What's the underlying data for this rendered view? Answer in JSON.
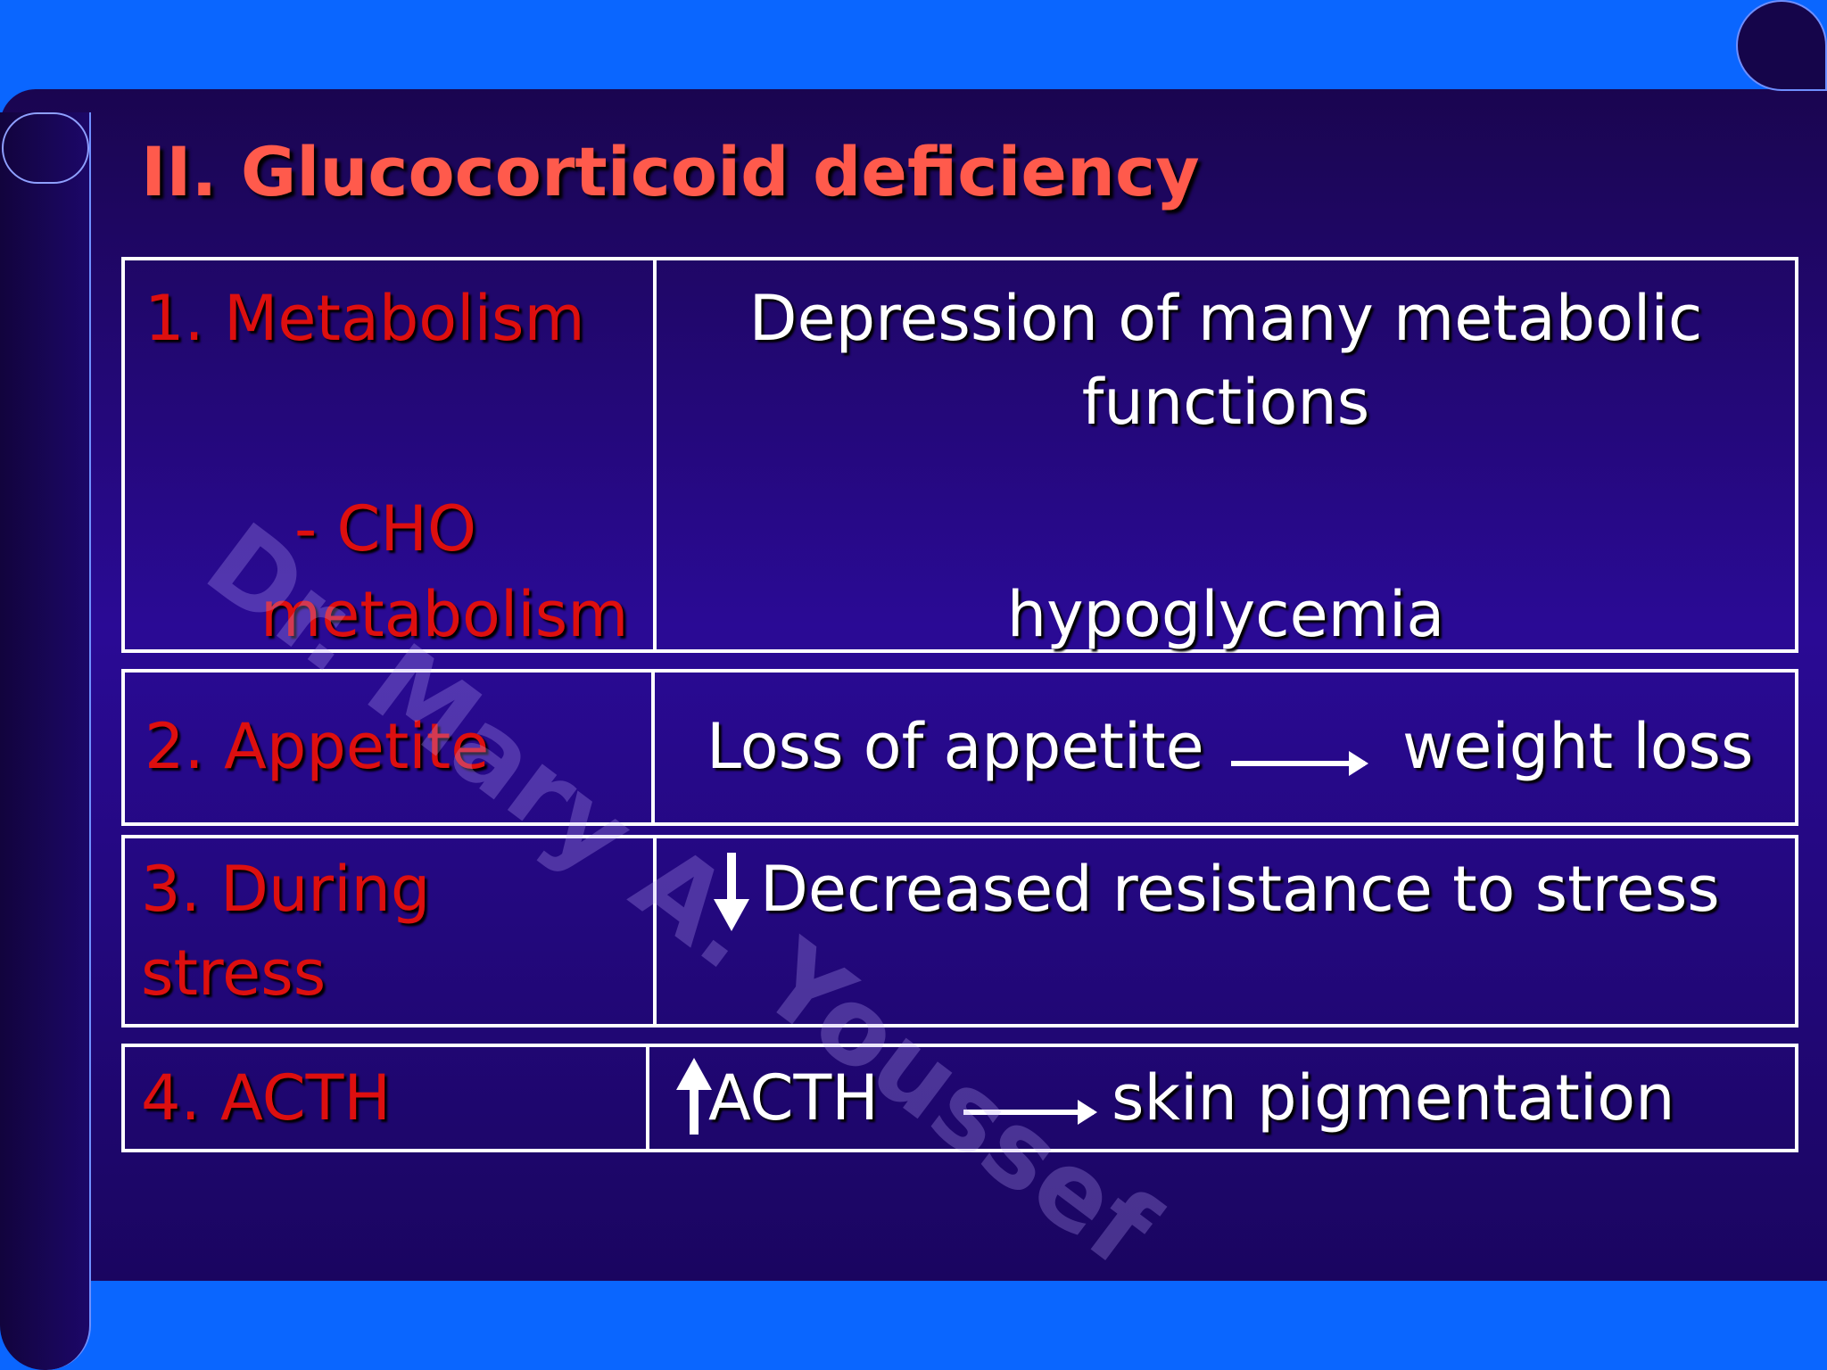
{
  "title": "II. Glucocorticoid deficiency",
  "watermark": "Dr. Mary A. Youssef",
  "rows": [
    {
      "label": "1. Metabolism",
      "sublabel_line1": "- CHO",
      "sublabel_line2": "metabolism",
      "effect_line1": "Depression of many metabolic",
      "effect_line2": "functions",
      "effect_line3": "hypoglycemia"
    },
    {
      "label": "2. Appetite",
      "effect_cause": "Loss of appetite",
      "effect_result": "weight loss"
    },
    {
      "label_line1": "3. During",
      "label_line2": "stress",
      "effect": "Decreased resistance to stress",
      "effect_icon": "arrow-down-icon"
    },
    {
      "label": "4. ACTH",
      "effect_cause": "ACTH",
      "effect_cause_icon": "arrow-up-icon",
      "effect_result": "skin pigmentation"
    }
  ],
  "colors": {
    "title": "#ff5a4c",
    "row_label": "#dd0f0f",
    "effect_text": "#ffffff",
    "panel": "#2a0a95",
    "frame": "#0a66ff"
  }
}
